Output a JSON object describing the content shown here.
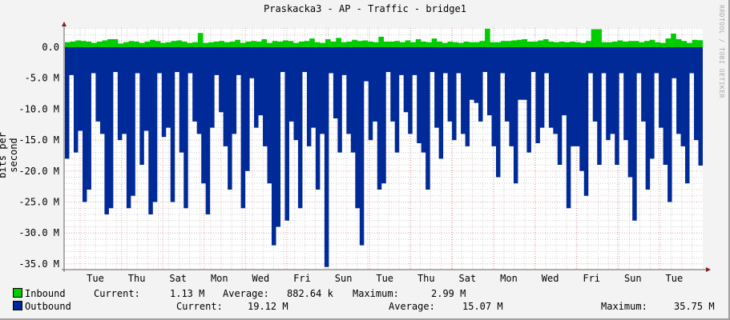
{
  "title": "Praskacka3 - AP - Traffic - bridge1",
  "watermark": "RRDTOOL / TOBI OETIKER",
  "colors": {
    "inbound": "#00cc00",
    "outbound": "#002a97",
    "grid_major": "#e5a0a0",
    "grid_minor": "#cccccc",
    "axis": "#606060",
    "arrow": "#802020"
  },
  "chart_data": {
    "type": "area",
    "title": "Praskacka3 - AP - Traffic - bridge1",
    "xlabel": "",
    "ylabel": "bits per second",
    "ylim": [
      -36000000,
      3000000
    ],
    "yticks": [
      "0.0",
      "-5.0 M",
      "-10.0 M",
      "-15.0 M",
      "-20.0 M",
      "-25.0 M",
      "-30.0 M",
      "-35.0 M"
    ],
    "ytick_values": [
      0,
      -5,
      -10,
      -15,
      -20,
      -25,
      -30,
      -35
    ],
    "xticks": [
      "Tue",
      "Thu",
      "Sat",
      "Mon",
      "Wed",
      "Fri",
      "Sun",
      "Tue",
      "Thu",
      "Sat",
      "Mon",
      "Wed",
      "Fri",
      "Sun",
      "Tue"
    ],
    "grid": true,
    "legend_position": "bottom",
    "series": [
      {
        "name": "Inbound",
        "color": "#00cc00",
        "values_mbps": [
          0.8,
          0.9,
          1.1,
          1.0,
          0.9,
          0.7,
          0.9,
          1.1,
          1.3,
          1.3,
          0.6,
          0.8,
          1.0,
          0.9,
          0.7,
          0.9,
          1.2,
          1.0,
          0.7,
          0.8,
          1.0,
          1.1,
          0.9,
          0.7,
          0.8,
          2.3,
          0.7,
          0.8,
          0.9,
          1.0,
          0.8,
          0.9,
          1.2,
          0.7,
          0.9,
          1.0,
          0.9,
          1.3,
          0.7,
          1.0,
          0.9,
          1.1,
          1.0,
          0.7,
          0.9,
          1.0,
          1.4,
          0.8,
          0.7,
          1.3,
          0.9,
          1.5,
          0.8,
          0.9,
          1.2,
          1.0,
          1.1,
          0.9,
          0.8,
          1.7,
          0.9,
          0.9,
          1.0,
          0.8,
          1.1,
          0.8,
          1.3,
          0.9,
          0.8,
          1.4,
          0.9,
          0.7,
          0.9,
          0.8,
          0.7,
          0.9,
          0.8,
          0.8,
          1.0,
          2.99,
          0.8,
          0.8,
          1.0,
          1.0,
          1.1,
          1.2,
          1.3,
          0.9,
          0.9,
          1.1,
          1.3,
          0.9,
          0.8,
          0.9,
          0.8,
          0.9,
          0.8,
          0.7,
          1.0,
          2.9,
          2.9,
          0.8,
          0.8,
          0.9,
          1.1,
          0.9,
          1.0,
          1.0,
          0.8,
          1.0,
          1.2,
          0.8,
          0.7,
          1.4,
          2.2,
          1.3,
          1.0,
          0.7,
          1.2,
          1.13
        ]
      },
      {
        "name": "Outbound",
        "color": "#002a97",
        "values_mbps": [
          -18,
          -4.5,
          -17,
          -13.5,
          -25,
          -23,
          -4.2,
          -12,
          -14,
          -27,
          -26,
          -4,
          -15,
          -14,
          -26,
          -24,
          -4.2,
          -19,
          -13.5,
          -27,
          -25,
          -4.2,
          -14.5,
          -13,
          -25,
          -4,
          -17,
          -26,
          -4.2,
          -12,
          -14,
          -22,
          -27,
          -13,
          -4.5,
          -10.5,
          -16,
          -23,
          -14,
          -4.5,
          -26,
          -20,
          -5,
          -13,
          -11,
          -16,
          -22,
          -32,
          -29,
          -4,
          -28,
          -12,
          -15,
          -26,
          -4,
          -16,
          -13,
          -23,
          -14,
          -35.5,
          -4.2,
          -11.5,
          -17,
          -4.5,
          -14,
          -17,
          -26,
          -32,
          -5.5,
          -15,
          -12,
          -23,
          -22,
          -4,
          -12,
          -17,
          -4.5,
          -10.5,
          -14,
          -4.5,
          -15.5,
          -17,
          -23,
          -4,
          -13,
          -18,
          -4.2,
          -12,
          -15,
          -4.2,
          -14,
          -16,
          -8.5,
          -9,
          -12,
          -4,
          -11,
          -16,
          -21,
          -4.2,
          -12,
          -16,
          -22,
          -8.5,
          -8.5,
          -17,
          -4,
          -15.5,
          -13,
          -4.2,
          -13,
          -14,
          -19,
          -11,
          -26,
          -16,
          -16,
          -20,
          -24,
          -4.2,
          -12,
          -19,
          -4.2,
          -15,
          -14,
          -19,
          -4.2,
          -15,
          -21,
          -28,
          -4.2,
          -12,
          -23,
          -18,
          -4.2,
          -13,
          -19,
          -25,
          -5,
          -14,
          -16,
          -22,
          -4.2,
          -15,
          -19.12
        ]
      }
    ],
    "legend": [
      {
        "name": "Inbound",
        "current": "1.13 M",
        "average": "882.64 k",
        "maximum": "2.99 M"
      },
      {
        "name": "Outbound",
        "current": "19.12 M",
        "average": "15.07 M",
        "maximum": "35.75 M"
      }
    ]
  },
  "legend": {
    "inbound": {
      "label": "Inbound",
      "current_label": "Current:",
      "current": "1.13 M",
      "average_label": "Average:",
      "average": "882.64 k",
      "maximum_label": "Maximum:",
      "maximum": "2.99 M"
    },
    "outbound": {
      "label": "Outbound",
      "current_label": "Current:",
      "current": "19.12 M",
      "average_label": "Average:",
      "average": "15.07 M",
      "maximum_label": "Maximum:",
      "maximum": "35.75 M"
    }
  }
}
